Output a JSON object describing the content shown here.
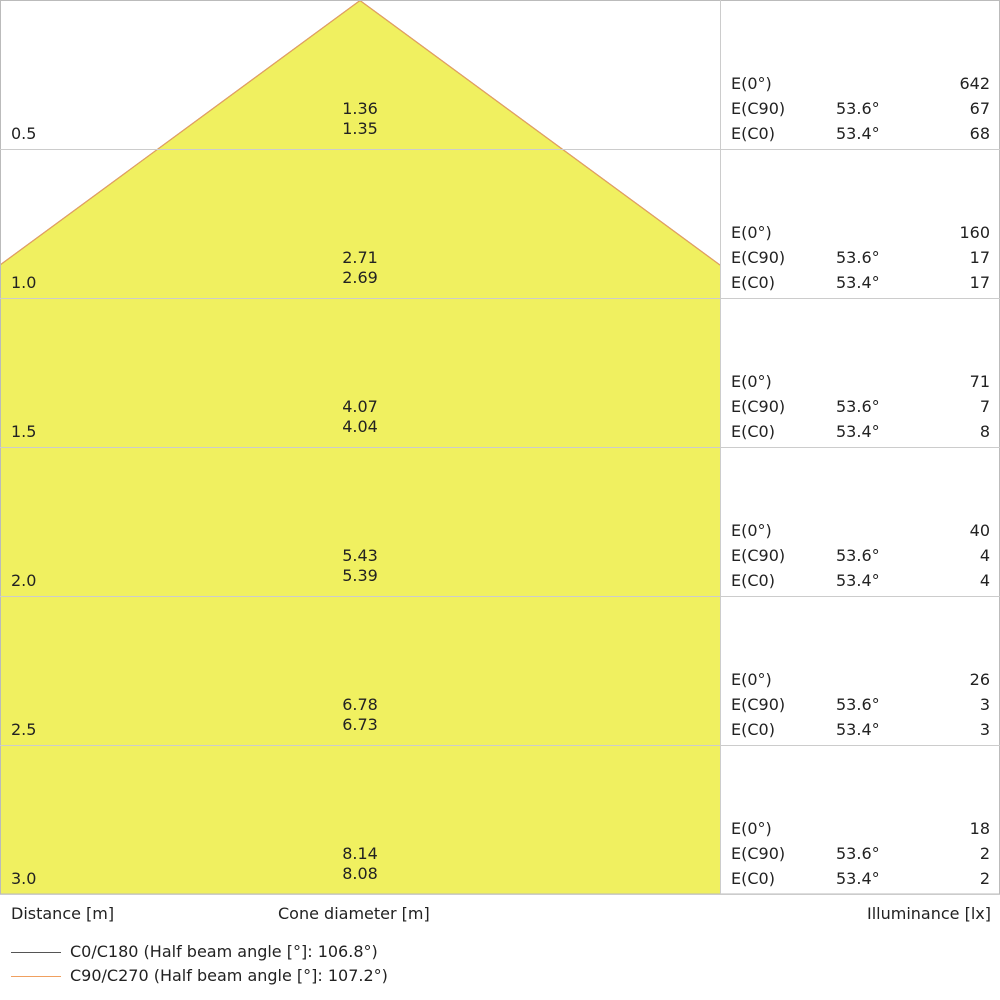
{
  "chart_data": {
    "type": "cone-diagram",
    "xlabel": "Distance [m]",
    "center_label": "Cone diameter [m]",
    "right_label": "Illuminance [lx]",
    "fill_color": "#f0f060",
    "series": [
      {
        "name": "C0/C180 (Half beam angle [°]: 106.8°)",
        "color": "#555555"
      },
      {
        "name": "C90/C270 (Half beam angle [°]: 107.2°)",
        "color": "#f0a060"
      }
    ],
    "rows": [
      {
        "distance": "0.5",
        "d_c90": "1.36",
        "d_c0": "1.35",
        "e0_label": "E(0°)",
        "e0": "642",
        "c90_label": "E(C90)",
        "c90_angle": "53.6°",
        "c90": "67",
        "c0_label": "E(C0)",
        "c0_angle": "53.4°",
        "c0": "68"
      },
      {
        "distance": "1.0",
        "d_c90": "2.71",
        "d_c0": "2.69",
        "e0_label": "E(0°)",
        "e0": "160",
        "c90_label": "E(C90)",
        "c90_angle": "53.6°",
        "c90": "17",
        "c0_label": "E(C0)",
        "c0_angle": "53.4°",
        "c0": "17"
      },
      {
        "distance": "1.5",
        "d_c90": "4.07",
        "d_c0": "4.04",
        "e0_label": "E(0°)",
        "e0": "71",
        "c90_label": "E(C90)",
        "c90_angle": "53.6°",
        "c90": "7",
        "c0_label": "E(C0)",
        "c0_angle": "53.4°",
        "c0": "8"
      },
      {
        "distance": "2.0",
        "d_c90": "5.43",
        "d_c0": "5.39",
        "e0_label": "E(0°)",
        "e0": "40",
        "c90_label": "E(C90)",
        "c90_angle": "53.6°",
        "c90": "4",
        "c0_label": "E(C0)",
        "c0_angle": "53.4°",
        "c0": "4"
      },
      {
        "distance": "2.5",
        "d_c90": "6.78",
        "d_c0": "6.73",
        "e0_label": "E(0°)",
        "e0": "26",
        "c90_label": "E(C90)",
        "c90_angle": "53.6°",
        "c90": "3",
        "c0_label": "E(C0)",
        "c0_angle": "53.4°",
        "c0": "3"
      },
      {
        "distance": "3.0",
        "d_c90": "8.14",
        "d_c0": "8.08",
        "e0_label": "E(0°)",
        "e0": "18",
        "c90_label": "E(C90)",
        "c90_angle": "53.6°",
        "c90": "2",
        "c0_label": "E(C0)",
        "c0_angle": "53.4°",
        "c0": "2"
      }
    ]
  }
}
